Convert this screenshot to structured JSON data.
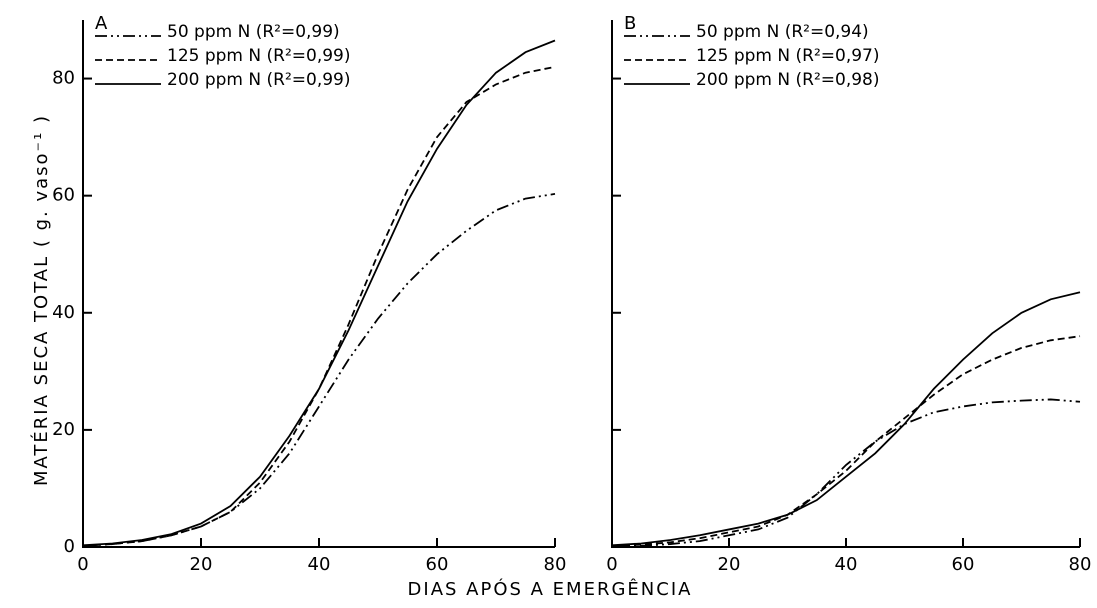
{
  "x_label": "DIAS APÓS A EMERGÊNCIA",
  "y_label": "MATÉRIA SECA TOTAL ( g. vaso⁻¹ )",
  "chart_data": [
    {
      "type": "line",
      "title": "A",
      "x": [
        0,
        5,
        10,
        15,
        20,
        25,
        30,
        35,
        40,
        45,
        50,
        55,
        60,
        65,
        70,
        75,
        80
      ],
      "series": [
        {
          "name": "50 ppm N (R²=0,99)",
          "color": "#000000",
          "dash": "dashdotdot",
          "values": [
            0.2,
            0.5,
            1,
            2,
            3.5,
            6,
            10,
            16,
            24,
            32,
            39,
            45,
            50,
            54,
            57.5,
            59.5,
            60.3
          ]
        },
        {
          "name": "125 ppm N (R²=0,99)",
          "color": "#000000",
          "dash": "dashed",
          "values": [
            0.2,
            0.5,
            1,
            2,
            3.5,
            6,
            11,
            18,
            27,
            38,
            50,
            61,
            70,
            76,
            79,
            81,
            82
          ]
        },
        {
          "name": "200 ppm N (R²=0,99)",
          "color": "#000000",
          "dash": "solid",
          "values": [
            0.3,
            0.6,
            1.2,
            2.2,
            4,
            7,
            12,
            19,
            27,
            37,
            48,
            59,
            68,
            75.5,
            81,
            84.5,
            86.5
          ]
        }
      ],
      "xlim": [
        0,
        80
      ],
      "xticks": [
        0,
        20,
        40,
        60,
        80
      ],
      "ylim": [
        0,
        90
      ],
      "yticks": [
        0,
        20,
        40,
        60,
        80
      ],
      "ytick_labels": true
    },
    {
      "type": "line",
      "title": "B",
      "x": [
        0,
        5,
        10,
        15,
        20,
        25,
        30,
        35,
        40,
        45,
        50,
        55,
        60,
        65,
        70,
        75,
        80
      ],
      "series": [
        {
          "name": "50 ppm N (R²=0,94)",
          "color": "#000000",
          "dash": "dashdotdot",
          "values": [
            0.1,
            0.2,
            0.5,
            1,
            2,
            3,
            5,
            9,
            14,
            18,
            21,
            23,
            24,
            24.7,
            25,
            25.2,
            24.8
          ]
        },
        {
          "name": "125 ppm N (R²=0,97)",
          "color": "#000000",
          "dash": "dashed",
          "values": [
            0.2,
            0.4,
            0.8,
            1.5,
            2.5,
            3.5,
            5.5,
            9,
            13,
            18,
            22,
            26,
            29.5,
            32,
            34,
            35.3,
            36
          ]
        },
        {
          "name": "200 ppm N (R²=0,98)",
          "color": "#000000",
          "dash": "solid",
          "values": [
            0.3,
            0.6,
            1.2,
            2,
            3,
            4,
            5.5,
            8,
            12,
            16,
            21,
            27,
            32,
            36.5,
            40,
            42.3,
            43.5
          ]
        }
      ],
      "xlim": [
        0,
        80
      ],
      "xticks": [
        0,
        20,
        40,
        60,
        80
      ],
      "ylim": [
        0,
        90
      ],
      "yticks": [
        0,
        20,
        40,
        60,
        80
      ],
      "ytick_labels": false
    }
  ]
}
